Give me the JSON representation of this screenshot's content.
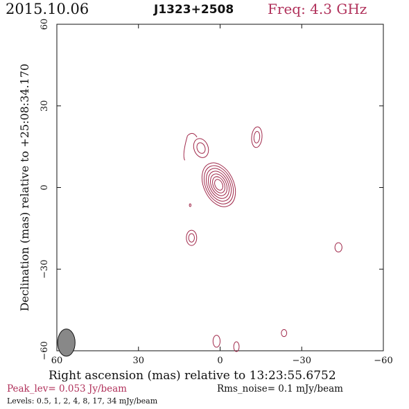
{
  "header": {
    "date": "2015.10.06",
    "source": "J1323+2508",
    "frequency": "Freq: 4.3 GHz"
  },
  "axes": {
    "xlabel": "Right ascension (mas) relative to 13:23:55.6752",
    "ylabel": "Declination (mas) relative to +25:08:34.170",
    "x_ticks": [
      60,
      30,
      0,
      -30,
      -60
    ],
    "x_tick_labels": [
      "60",
      "30",
      "0",
      "−30",
      "−60"
    ],
    "y_ticks": [
      60,
      30,
      0,
      -30,
      -60
    ],
    "y_tick_labels": [
      "60",
      "30",
      "0",
      "−30",
      "−60"
    ],
    "xlim": [
      60,
      -60
    ],
    "ylim": [
      -60,
      60
    ]
  },
  "footer": {
    "peak": "Peak_lev=  0.053 Jy/beam",
    "rms": "Rms_noise=  0.1 mJy/beam",
    "levels": "Levels: 0.5,    1,    2,    4,    8,   17,   34 mJy/beam"
  },
  "colors": {
    "contour": "#a0284a",
    "freq": "#b0305a",
    "beam": "#888888"
  },
  "chart_data": {
    "type": "contour",
    "levels_mJy": [
      0.5,
      1,
      2,
      4,
      8,
      17,
      34
    ],
    "beam": {
      "x": 56.5,
      "y": -57,
      "major": 5,
      "minor": 3.2,
      "pa": 0
    },
    "components": [
      {
        "x": 0.5,
        "y": 1,
        "major": 8.5,
        "minor": 5.5,
        "pa": -25,
        "levels": 7
      },
      {
        "x": 7,
        "y": 14.5,
        "major": 3.6,
        "minor": 2.6,
        "pa": -20,
        "levels": 2
      },
      {
        "x": -13.5,
        "y": 18.5,
        "major": 3.8,
        "minor": 1.9,
        "pa": 5,
        "levels": 2
      },
      {
        "x": 10.5,
        "y": -18.5,
        "major": 2.8,
        "minor": 1.9,
        "pa": 0,
        "levels": 2
      },
      {
        "x": -43.5,
        "y": -22,
        "major": 1.7,
        "minor": 1.3,
        "pa": 0,
        "levels": 1
      },
      {
        "x": -23.5,
        "y": -53.5,
        "major": 1.3,
        "minor": 1.0,
        "pa": 0,
        "levels": 1
      },
      {
        "x": 11,
        "y": -6.5,
        "major": 0.5,
        "minor": 0.3,
        "pa": 0,
        "levels": 1
      },
      {
        "x": 1.3,
        "y": -56.5,
        "major": 2.2,
        "minor": 1.3,
        "pa": 0,
        "levels": 1
      },
      {
        "x": -6,
        "y": -58.5,
        "major": 1.8,
        "minor": 1.0,
        "pa": 0,
        "levels": 1
      }
    ]
  }
}
